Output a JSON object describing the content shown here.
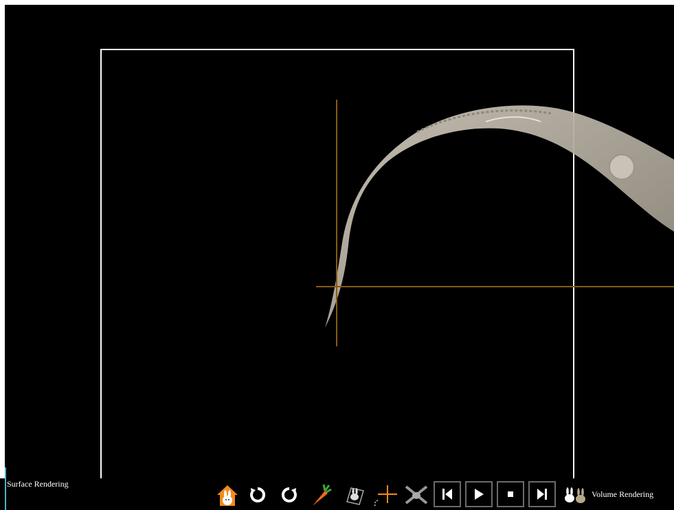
{
  "viewer": {
    "left_label": "Surface Rendering",
    "right_label": "Volume Rendering"
  },
  "toolbar": {
    "buttons": [
      {
        "name": "home",
        "icon": "home-rabbit-icon"
      },
      {
        "name": "rotate-right",
        "icon": "rotate-clockwise-icon"
      },
      {
        "name": "rotate-left",
        "icon": "rotate-counterclockwise-icon"
      },
      {
        "name": "carrot",
        "icon": "carrot-icon"
      },
      {
        "name": "rabbit-frame",
        "icon": "rabbit-frame-icon"
      },
      {
        "name": "crosshair",
        "icon": "crosshair-icon"
      },
      {
        "name": "rabbit-disabled",
        "icon": "rabbit-cross-icon"
      }
    ],
    "media": [
      {
        "name": "previous",
        "icon": "skip-previous-icon"
      },
      {
        "name": "play",
        "icon": "play-icon"
      },
      {
        "name": "stop",
        "icon": "stop-icon"
      },
      {
        "name": "next",
        "icon": "skip-next-icon"
      }
    ]
  },
  "colors": {
    "background": "#000000",
    "crosshair": "#8a5a10",
    "model": "#b9b2a6",
    "accent_orange": "#f28a1e",
    "left_edge": "#4fb3c6"
  }
}
